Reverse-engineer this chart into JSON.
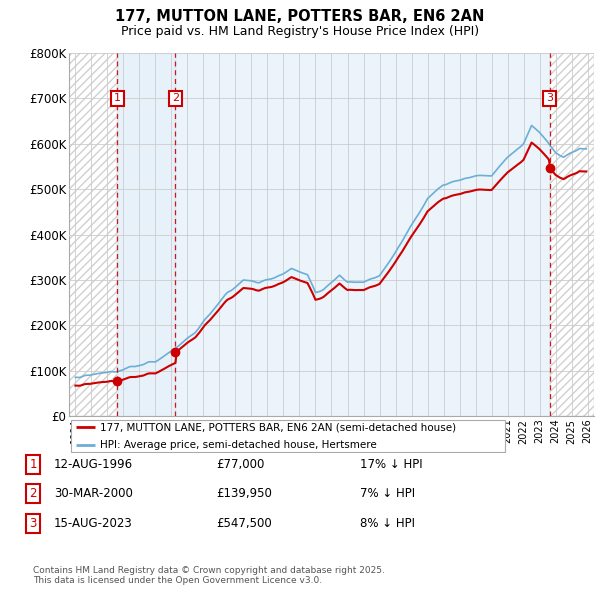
{
  "title_line1": "177, MUTTON LANE, POTTERS BAR, EN6 2AN",
  "title_line2": "Price paid vs. HM Land Registry's House Price Index (HPI)",
  "ylim": [
    0,
    800000
  ],
  "yticks": [
    0,
    100000,
    200000,
    300000,
    400000,
    500000,
    600000,
    700000,
    800000
  ],
  "ytick_labels": [
    "£0",
    "£100K",
    "£200K",
    "£300K",
    "£400K",
    "£500K",
    "£600K",
    "£700K",
    "£800K"
  ],
  "xlim_start": 1993.6,
  "xlim_end": 2026.4,
  "sale_dates": [
    1996.62,
    2000.25,
    2023.62
  ],
  "sale_prices": [
    77000,
    139950,
    547500
  ],
  "sale_labels": [
    "1",
    "2",
    "3"
  ],
  "hpi_color": "#6baed6",
  "price_color": "#cc0000",
  "dashed_line_color": "#cc0000",
  "fill_color": "#d0e4f5",
  "hatch_color": "#d0d0d0",
  "grid_color": "#cccccc",
  "legend_entries": [
    "177, MUTTON LANE, POTTERS BAR, EN6 2AN (semi-detached house)",
    "HPI: Average price, semi-detached house, Hertsmere"
  ],
  "table_rows": [
    {
      "num": "1",
      "date": "12-AUG-1996",
      "price": "£77,000",
      "note": "17% ↓ HPI"
    },
    {
      "num": "2",
      "date": "30-MAR-2000",
      "price": "£139,950",
      "note": "7% ↓ HPI"
    },
    {
      "num": "3",
      "date": "15-AUG-2023",
      "price": "£547,500",
      "note": "8% ↓ HPI"
    }
  ],
  "footnote": "Contains HM Land Registry data © Crown copyright and database right 2025.\nThis data is licensed under the Open Government Licence v3.0."
}
